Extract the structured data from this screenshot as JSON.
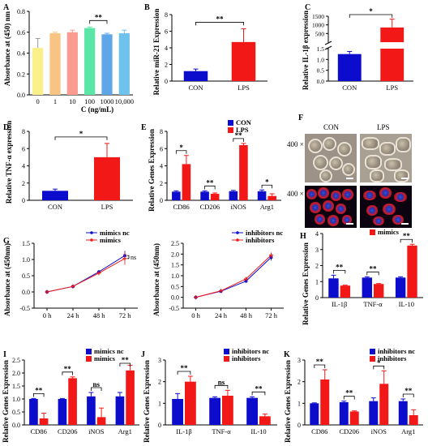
{
  "panels": {
    "A": {
      "letter": "A",
      "ylabel": "Absorbance at (450) nm",
      "xlabel": "C (ng/mL)",
      "sig": "**"
    },
    "B": {
      "letter": "B",
      "ylabel": "Relative miR-21 Expression",
      "sig": "**"
    },
    "C": {
      "letter": "C",
      "ylabel": "Relative IL-1β expression",
      "sig": "*"
    },
    "D": {
      "letter": "D",
      "ylabel": "Relative TNF-α expression",
      "sig": "*"
    },
    "E": {
      "letter": "E",
      "ylabel": "Relative Genes Expression"
    },
    "F": {
      "letter": "F",
      "col1": "CON",
      "col2": "LPS",
      "row1": "400 ×",
      "row2": "400 ×"
    },
    "G": {
      "letter": "G",
      "ylabel": "Absorbance at (450nm)",
      "sig": "ns"
    },
    "H": {
      "letter": "H",
      "ylabel": "Relative Genes Expression"
    },
    "I": {
      "letter": "I",
      "ylabel": "Relative Genes Expression"
    },
    "J": {
      "letter": "J",
      "ylabel": "Relative Genes Expression"
    },
    "K": {
      "letter": "K",
      "ylabel": "Relative Genes Expression"
    }
  },
  "colors": {
    "blue": "#0c0ccc",
    "red": "#f21818"
  },
  "chart_data": [
    {
      "id": "A",
      "type": "bar",
      "categories": [
        "0",
        "1",
        "10",
        "100",
        "1000",
        "10,000"
      ],
      "values": [
        0.45,
        0.59,
        0.6,
        0.64,
        0.58,
        0.59
      ],
      "errors": [
        0.09,
        0.01,
        0.02,
        0.01,
        0.01,
        0.03
      ],
      "colors": [
        "#f9f08a",
        "#f8c383",
        "#fb9a8e",
        "#59e6a7",
        "#5fa6e8",
        "#6fc2ec"
      ],
      "ylim": [
        0,
        0.8
      ],
      "yticks": [
        "0.0",
        "0.2",
        "0.4",
        "0.6",
        "0.8"
      ],
      "ylabel": "Absorbance at (450) nm",
      "xlabel": "C (ng/mL)",
      "annotations": [
        {
          "from": 3,
          "to": 4,
          "text": "**"
        }
      ]
    },
    {
      "id": "B",
      "type": "bar",
      "categories": [
        "CON",
        "LPS"
      ],
      "values": [
        1.2,
        4.7
      ],
      "errors": [
        0.25,
        1.6
      ],
      "ylim": [
        0,
        8
      ],
      "yticks": [
        "0",
        "2",
        "4",
        "6",
        "8"
      ],
      "ylabel": "Relative miR-21 Expression",
      "annotations": [
        {
          "from": 0,
          "to": 1,
          "text": "**"
        }
      ]
    },
    {
      "id": "C",
      "type": "bar",
      "broken_axis": true,
      "categories": [
        "CON",
        "LPS"
      ],
      "values": [
        1.25,
        850
      ],
      "errors": [
        0.12,
        480
      ],
      "yticks": [
        "0.0",
        "0.5",
        "1.0",
        "1.5",
        "500",
        "1000",
        "1500"
      ],
      "ylabel": "Relative IL-1β expression",
      "annotations": [
        {
          "from": 0,
          "to": 1,
          "text": "*"
        }
      ]
    },
    {
      "id": "D",
      "type": "bar",
      "categories": [
        "CON",
        "LPS"
      ],
      "values": [
        1.1,
        5.0
      ],
      "errors": [
        0.2,
        1.6
      ],
      "ylim": [
        0,
        8
      ],
      "yticks": [
        "0",
        "2",
        "4",
        "6",
        "8"
      ],
      "ylabel": "Relative TNF-α expression",
      "annotations": [
        {
          "from": 0,
          "to": 1,
          "text": "*"
        }
      ]
    },
    {
      "id": "E",
      "type": "bar",
      "categories": [
        "CD86",
        "CD206",
        "iNOS",
        "Arg1"
      ],
      "series": [
        {
          "name": "CON",
          "values": [
            1.0,
            1.0,
            1.05,
            1.05
          ],
          "errors": [
            0.1,
            0.1,
            0.1,
            0.15
          ]
        },
        {
          "name": "LPS",
          "values": [
            4.2,
            0.75,
            6.4,
            0.5
          ],
          "errors": [
            1.0,
            0.1,
            0.2,
            0.25
          ]
        }
      ],
      "ylim": [
        0,
        8
      ],
      "yticks": [
        "0",
        "2",
        "4",
        "6",
        "8"
      ],
      "ylabel": "Relative Genes Expression",
      "legend": "top-right",
      "annotations": [
        {
          "cat": 0,
          "text": "*"
        },
        {
          "cat": 1,
          "text": "**"
        },
        {
          "cat": 2,
          "text": "**"
        },
        {
          "cat": 3,
          "text": "*"
        }
      ]
    },
    {
      "id": "G1",
      "type": "line",
      "x": [
        "0 h",
        "24 h",
        "48 h",
        "72 h"
      ],
      "series": [
        {
          "name": "mimics nc",
          "values": [
            0.0,
            0.17,
            0.62,
            1.12
          ],
          "errors": [
            0.02,
            0.02,
            0.04,
            0.15
          ]
        },
        {
          "name": "mimics",
          "values": [
            0.0,
            0.17,
            0.58,
            1.03
          ],
          "errors": [
            0.02,
            0.02,
            0.04,
            0.2
          ]
        }
      ],
      "ylim": [
        -0.5,
        1.5
      ],
      "yticks": [
        "-0.5",
        "0.0",
        "0.5",
        "1.0",
        "1.5"
      ],
      "ylabel": "Absorbance at (450nm)",
      "legend": "top-right",
      "annotations": [
        {
          "text": "ns"
        }
      ]
    },
    {
      "id": "G2",
      "type": "line",
      "x": [
        "0 h",
        "24 h",
        "48 h",
        "72 h"
      ],
      "series": [
        {
          "name": "inhibitors nc",
          "values": [
            0.0,
            0.28,
            0.75,
            1.85
          ],
          "errors": [
            0.02,
            0.03,
            0.05,
            0.15
          ]
        },
        {
          "name": "inhibitors",
          "values": [
            0.0,
            0.3,
            0.85,
            1.95
          ],
          "errors": [
            0.02,
            0.03,
            0.05,
            0.12
          ]
        }
      ],
      "ylim": [
        -0.5,
        2.5
      ],
      "yticks": [
        "-0.5",
        "0.0",
        "0.5",
        "1.0",
        "1.5",
        "2.0",
        "2.5"
      ],
      "ylabel": "Absorbance at (450nm)",
      "legend": "top-right"
    },
    {
      "id": "H",
      "type": "bar",
      "categories": [
        "IL-1β",
        "TNF-α",
        "IL-10"
      ],
      "series": [
        {
          "name": "mimics nc",
          "values": [
            1.2,
            1.25,
            1.25
          ],
          "errors": [
            0.2,
            0.05,
            0.05
          ]
        },
        {
          "name": "mimics",
          "values": [
            0.75,
            0.85,
            3.25
          ],
          "errors": [
            0.03,
            0.03,
            0.08
          ]
        }
      ],
      "ylim": [
        0,
        4
      ],
      "yticks": [
        "0",
        "1",
        "2",
        "3",
        "4"
      ],
      "ylabel": "Relative Genes Expression",
      "legend": "top-right",
      "annotations": [
        {
          "cat": 0,
          "text": "**"
        },
        {
          "cat": 1,
          "text": "**"
        },
        {
          "cat": 2,
          "text": "**"
        }
      ]
    },
    {
      "id": "I",
      "type": "bar",
      "categories": [
        "CD86",
        "CD206",
        "iNOS",
        "Arg1"
      ],
      "series": [
        {
          "name": "mimics nc",
          "values": [
            1.0,
            1.0,
            1.1,
            1.1
          ],
          "errors": [
            0.02,
            0.02,
            0.15,
            0.15
          ]
        },
        {
          "name": "mimics",
          "values": [
            0.25,
            1.8,
            0.3,
            2.1
          ],
          "errors": [
            0.2,
            0.05,
            0.35,
            0.2
          ]
        }
      ],
      "ylim": [
        0,
        2.5
      ],
      "yticks": [
        "0.0",
        "0.5",
        "1.0",
        "1.5",
        "2.0",
        "2.5"
      ],
      "ylabel": "Relative Genes Expression",
      "legend": "top-right",
      "annotations": [
        {
          "cat": 0,
          "text": "**"
        },
        {
          "cat": 1,
          "text": "**"
        },
        {
          "cat": 2,
          "text": "ns"
        },
        {
          "cat": 3,
          "text": "**"
        }
      ]
    },
    {
      "id": "J",
      "type": "bar",
      "categories": [
        "IL-1β",
        "TNF-α",
        "IL-10"
      ],
      "series": [
        {
          "name": "inhibitors nc",
          "values": [
            1.2,
            1.25,
            1.25
          ],
          "errors": [
            0.25,
            0.05,
            0.05
          ]
        },
        {
          "name": "inhibitors",
          "values": [
            2.0,
            1.35,
            0.4
          ],
          "errors": [
            0.25,
            0.25,
            0.1
          ]
        }
      ],
      "ylim": [
        0,
        3
      ],
      "yticks": [
        "0",
        "1",
        "2",
        "3"
      ],
      "ylabel": "Relative Genes Expression",
      "legend": "top-right",
      "annotations": [
        {
          "cat": 0,
          "text": "**"
        },
        {
          "cat": 1,
          "text": "ns"
        },
        {
          "cat": 2,
          "text": "**"
        }
      ]
    },
    {
      "id": "K",
      "type": "bar",
      "categories": [
        "CD86",
        "CD206",
        "iNOS",
        "Arg1"
      ],
      "series": [
        {
          "name": "inhibitors nc",
          "values": [
            1.0,
            1.05,
            1.1,
            1.1
          ],
          "errors": [
            0.02,
            0.05,
            0.15,
            0.1
          ]
        },
        {
          "name": "inhibitors",
          "values": [
            2.1,
            0.62,
            1.9,
            0.45
          ],
          "errors": [
            0.45,
            0.03,
            0.6,
            0.25
          ]
        }
      ],
      "ylim": [
        0,
        3
      ],
      "yticks": [
        "0",
        "1",
        "2",
        "3"
      ],
      "ylabel": "Relative Genes Expression",
      "legend": "top-right",
      "annotations": [
        {
          "cat": 0,
          "text": "**"
        },
        {
          "cat": 1,
          "text": "**"
        },
        {
          "cat": 2,
          "text": "*"
        },
        {
          "cat": 3,
          "text": "**"
        }
      ]
    }
  ]
}
